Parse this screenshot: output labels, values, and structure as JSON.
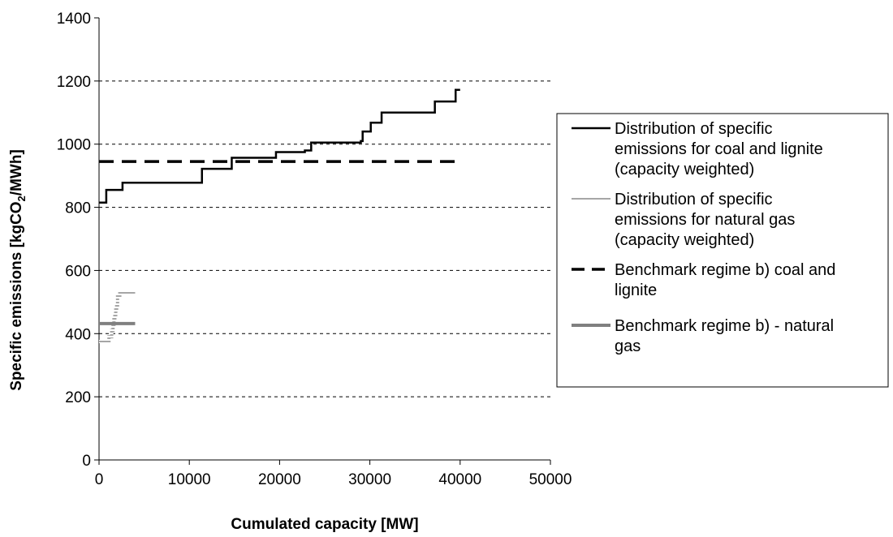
{
  "chart_data": {
    "type": "line",
    "title": "",
    "xlabel": "Cumulated capacity [MW]",
    "ylabel": {
      "prefix": "Specific emissions [kgCO",
      "subscript": "2",
      "suffix": "/MWh]"
    },
    "xlim": [
      0,
      50000
    ],
    "ylim": [
      0,
      1400
    ],
    "x_ticks": [
      "0",
      "10000",
      "20000",
      "30000",
      "40000",
      "50000"
    ],
    "y_ticks": [
      "0",
      "200",
      "400",
      "600",
      "800",
      "1000",
      "1200",
      "1400"
    ],
    "grid": "horizontal dashed",
    "legend_position": "right",
    "series": [
      {
        "name": "Distribution of specific emissions for coal and lignite (capacity weighted)",
        "legend_lines": [
          "Distribution of specific",
          "emissions for coal and lignite",
          "(capacity weighted)"
        ],
        "style": "step-solid",
        "color": "#000000",
        "points": [
          [
            0,
            815
          ],
          [
            800,
            815
          ],
          [
            800,
            855
          ],
          [
            2600,
            855
          ],
          [
            2600,
            878
          ],
          [
            11400,
            878
          ],
          [
            11400,
            922
          ],
          [
            14700,
            922
          ],
          [
            14700,
            957
          ],
          [
            19600,
            957
          ],
          [
            19600,
            975
          ],
          [
            22800,
            975
          ],
          [
            22800,
            980
          ],
          [
            23500,
            980
          ],
          [
            23500,
            1005
          ],
          [
            29000,
            1005
          ],
          [
            29000,
            1010
          ],
          [
            29200,
            1010
          ],
          [
            29200,
            1040
          ],
          [
            30100,
            1040
          ],
          [
            30100,
            1068
          ],
          [
            31300,
            1068
          ],
          [
            31300,
            1100
          ],
          [
            37200,
            1100
          ],
          [
            37200,
            1135
          ],
          [
            39500,
            1135
          ],
          [
            39500,
            1172
          ],
          [
            40000,
            1172
          ]
        ]
      },
      {
        "name": "Distribution of specific emissions for natural gas (capacity weighted)",
        "legend_lines": [
          "Distribution of specific",
          "emissions for natural gas",
          "(capacity weighted)"
        ],
        "style": "step-hatched",
        "color": "#b3b3b3",
        "points": [
          [
            0,
            375
          ],
          [
            1100,
            375
          ],
          [
            1100,
            390
          ],
          [
            1400,
            390
          ],
          [
            1400,
            410
          ],
          [
            1550,
            410
          ],
          [
            1550,
            425
          ],
          [
            1650,
            425
          ],
          [
            1650,
            445
          ],
          [
            1750,
            445
          ],
          [
            1750,
            460
          ],
          [
            1850,
            460
          ],
          [
            1850,
            475
          ],
          [
            1950,
            475
          ],
          [
            1950,
            490
          ],
          [
            2050,
            490
          ],
          [
            2050,
            520
          ],
          [
            2300,
            520
          ],
          [
            2300,
            530
          ],
          [
            4000,
            530
          ]
        ]
      },
      {
        "name": "Benchmark regime b) coal and lignite",
        "legend_lines": [
          "Benchmark regime b) coal and",
          "lignite"
        ],
        "style": "dashed",
        "color": "#000000",
        "points": [
          [
            0,
            945
          ],
          [
            40000,
            945
          ]
        ]
      },
      {
        "name": "Benchmark regime b) - natural gas",
        "legend_lines": [
          "Benchmark regime b) - natural",
          "gas"
        ],
        "style": "solid-thick",
        "color": "#808080",
        "points": [
          [
            0,
            432
          ],
          [
            4000,
            432
          ]
        ]
      }
    ]
  }
}
